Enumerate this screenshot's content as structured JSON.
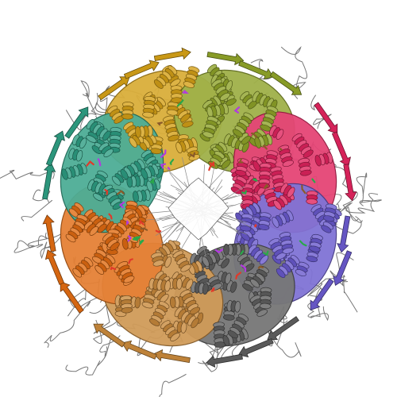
{
  "image": {
    "subject": "protein-ribbon-complex",
    "background": "#ffffff",
    "symmetry_order": 8
  },
  "chains": [
    {
      "name": "chain-gold",
      "color": "#d4a017"
    },
    {
      "name": "chain-olive",
      "color": "#8fa329"
    },
    {
      "name": "chain-pink",
      "color": "#e0245e"
    },
    {
      "name": "chain-purple",
      "color": "#6a5acd"
    },
    {
      "name": "chain-gray",
      "color": "#5f5f5f"
    },
    {
      "name": "chain-tan",
      "color": "#c8893c"
    },
    {
      "name": "chain-orange",
      "color": "#e06b12"
    },
    {
      "name": "chain-teal",
      "color": "#2e9e83"
    }
  ],
  "accents": [
    "#e03a2a",
    "#2aa84a",
    "#b23adf",
    "#8a5a2a"
  ],
  "outline_color": "#3c3c3c"
}
